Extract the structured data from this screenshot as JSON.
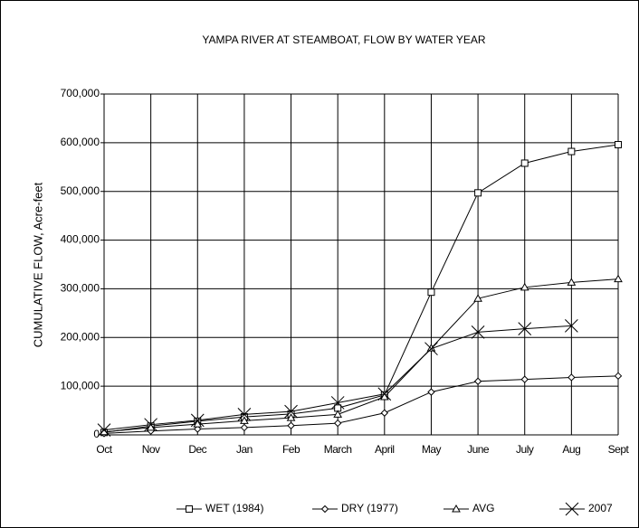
{
  "chart_data": {
    "type": "line",
    "title": "YAMPA RIVER AT STEAMBOAT, FLOW BY WATER YEAR",
    "y_label": "CUMULATIVE FLOW, Acre-feet",
    "categories": [
      "Oct",
      "Nov",
      "Dec",
      "Jan",
      "Feb",
      "March",
      "April",
      "May",
      "June",
      "July",
      "Aug",
      "Sept"
    ],
    "ylim": [
      0,
      700000
    ],
    "yticks": [
      0,
      {
        "value": 100000,
        "label": "100,000"
      },
      {
        "value": 200000,
        "label": "200,000"
      },
      {
        "value": 300000,
        "label": "300,000"
      },
      {
        "value": 400000,
        "label": "400,000"
      },
      {
        "value": 500000,
        "label": "500,000"
      },
      {
        "value": 600000,
        "label": "600,000"
      },
      {
        "value": 700000,
        "label": "700,000"
      }
    ],
    "grid": true,
    "legend": "bottom",
    "series": [
      {
        "name": "WET (1984)",
        "color": "#000000",
        "marker": "square",
        "values": [
          5000,
          18000,
          28000,
          37000,
          43000,
          55000,
          82000,
          293000,
          497000,
          558000,
          582000,
          596000
        ]
      },
      {
        "name": "DRY (1977)",
        "color": "#000000",
        "marker": "diamond",
        "values": [
          3000,
          8000,
          12000,
          15000,
          19000,
          24000,
          45000,
          88000,
          110000,
          114000,
          118000,
          121000
        ]
      },
      {
        "name": "AVG",
        "color": "#000000",
        "marker": "triangle",
        "values": [
          6000,
          15000,
          22000,
          29000,
          35000,
          42000,
          78000,
          178000,
          280000,
          303000,
          313000,
          320000
        ]
      },
      {
        "name": "2007",
        "color": "#000000",
        "marker": "x",
        "values": [
          10000,
          21000,
          30000,
          42000,
          48000,
          66000,
          84000,
          177000,
          211000,
          218000,
          224000,
          null
        ]
      }
    ]
  }
}
